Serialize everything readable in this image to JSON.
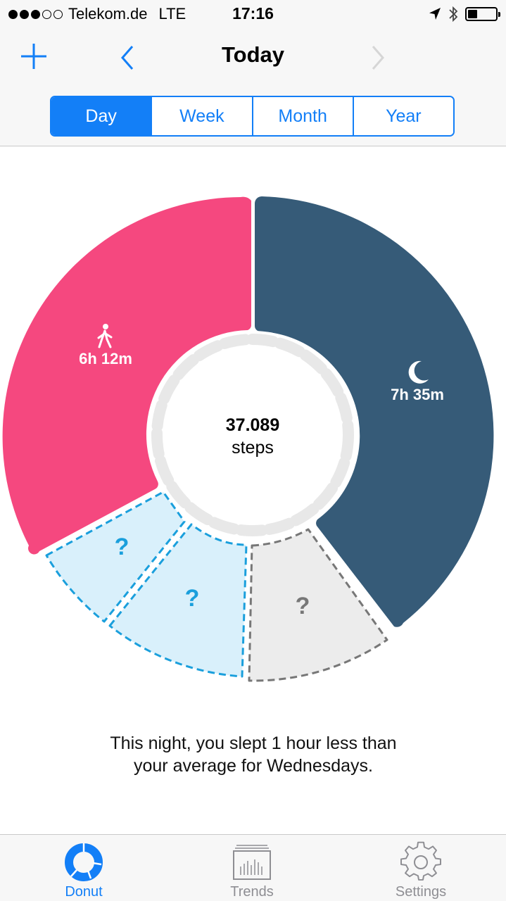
{
  "status_bar": {
    "carrier": "Telekom.de",
    "network": "LTE",
    "time": "17:16",
    "signal_bars_filled": 3,
    "signal_bars_total": 5,
    "battery_level_percent": 35
  },
  "nav": {
    "title": "Today",
    "add_icon": "plus-icon",
    "prev_icon": "chevron-left-icon",
    "next_icon": "chevron-right-icon"
  },
  "segments": [
    {
      "label": "Day",
      "active": true
    },
    {
      "label": "Week",
      "active": false
    },
    {
      "label": "Month",
      "active": false
    },
    {
      "label": "Year",
      "active": false
    }
  ],
  "donut": {
    "activity": {
      "label": "6h 12m",
      "icon": "walking-icon",
      "color": "#f5487f"
    },
    "sleep": {
      "label": "7h 35m",
      "icon": "moon-icon",
      "color": "#365b78"
    },
    "unknown": {
      "label": "?",
      "color_blue": "#1a9fdc",
      "fill_blue": "#d9f0fb",
      "color_gray": "#777777",
      "fill_gray": "#ececec"
    },
    "center": {
      "value": "37.089",
      "unit": "steps"
    }
  },
  "message": {
    "line1": "This night, you slept 1 hour less than",
    "line2": "your average for Wednesdays."
  },
  "tabs": [
    {
      "label": "Donut",
      "icon": "donut-icon",
      "active": true
    },
    {
      "label": "Trends",
      "icon": "trends-icon",
      "active": false
    },
    {
      "label": "Settings",
      "icon": "gear-icon",
      "active": false
    }
  ],
  "colors": {
    "accent": "#137ff7",
    "inactive": "#8e8e93"
  }
}
